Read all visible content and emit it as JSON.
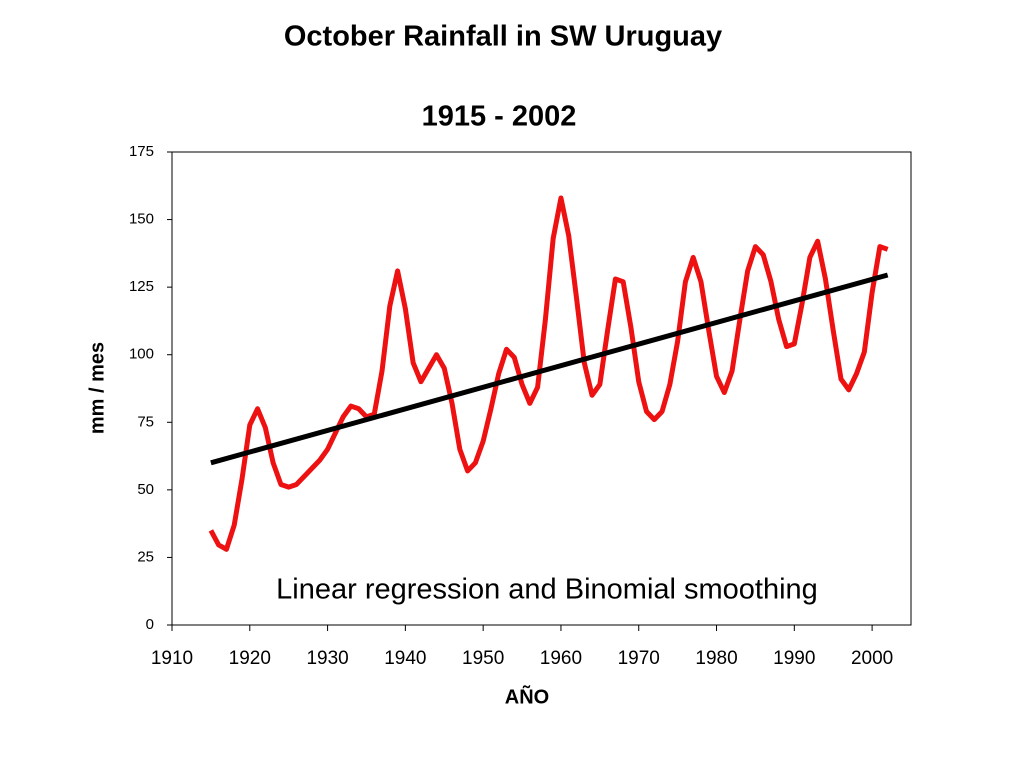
{
  "chart_data": {
    "type": "line",
    "title": "October Rainfall in SW Uruguay",
    "subtitle": "1915 - 2002",
    "xlabel": "AÑO",
    "ylabel": "mm / mes",
    "annotation": "Linear regression and Binomial smoothing",
    "xlim": [
      1910,
      2005
    ],
    "xticks": [
      1910,
      1920,
      1930,
      1940,
      1950,
      1960,
      1970,
      1980,
      1990,
      2000
    ],
    "ylim": [
      0,
      175
    ],
    "yticks": [
      0,
      25,
      50,
      75,
      100,
      125,
      150,
      175
    ],
    "series": [
      {
        "color": "#ee1111",
        "x": [
          1915,
          1916,
          1917,
          1918,
          1919,
          1920,
          1921,
          1922,
          1923,
          1924,
          1925,
          1926,
          1927,
          1928,
          1929,
          1930,
          1931,
          1932,
          1933,
          1934,
          1935,
          1936,
          1937,
          1938,
          1939,
          1940,
          1941,
          1942,
          1943,
          1944,
          1945,
          1946,
          1947,
          1948,
          1949,
          1950,
          1951,
          1952,
          1953,
          1954,
          1955,
          1956,
          1957,
          1958,
          1959,
          1960,
          1961,
          1962,
          1963,
          1964,
          1965,
          1966,
          1967,
          1968,
          1969,
          1970,
          1971,
          1972,
          1973,
          1974,
          1975,
          1976,
          1977,
          1978,
          1979,
          1980,
          1981,
          1982,
          1983,
          1984,
          1985,
          1986,
          1987,
          1988,
          1989,
          1990,
          1991,
          1992,
          1993,
          1994,
          1995,
          1996,
          1997,
          1998,
          1999,
          2000,
          2001,
          2002
        ],
        "values": [
          35,
          29.6,
          28,
          37,
          54,
          74,
          80,
          73,
          60,
          52,
          51,
          52,
          55,
          58,
          61,
          65,
          71,
          77,
          81,
          80,
          77,
          78,
          94,
          118,
          131,
          117,
          97,
          90,
          95,
          100,
          95,
          82,
          65,
          57,
          60,
          68,
          80,
          93,
          102,
          99,
          89,
          82,
          88,
          113,
          143,
          158,
          144,
          121,
          97,
          85,
          89,
          109,
          128,
          127,
          110,
          90,
          79,
          76,
          79,
          89,
          105,
          127,
          136,
          127,
          109,
          92,
          86,
          94,
          113,
          131,
          140,
          137,
          127,
          113,
          103,
          104,
          119,
          136,
          142,
          128,
          109,
          91,
          87,
          93,
          101,
          123,
          140,
          139
        ]
      },
      {
        "color": "#000000",
        "x": [
          1915,
          2002
        ],
        "values": [
          60,
          129.5
        ]
      }
    ]
  }
}
